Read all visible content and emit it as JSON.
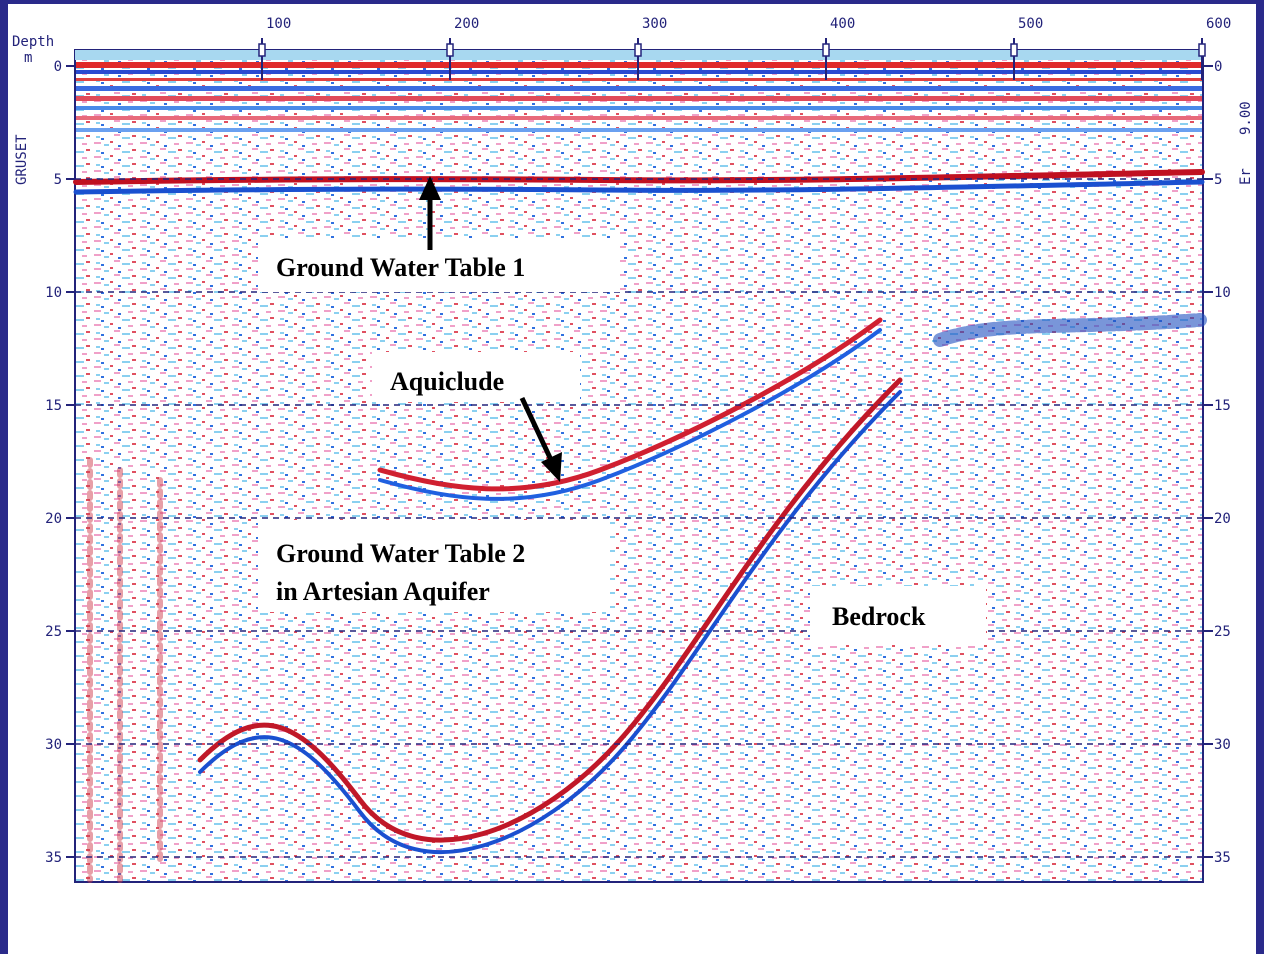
{
  "top_axis": {
    "ticks": [
      100,
      200,
      300,
      400,
      500,
      600
    ]
  },
  "left_axis": {
    "title": "Depth",
    "unit": "m",
    "label": "GRUSET",
    "ticks": [
      0,
      5,
      10,
      15,
      20,
      25,
      30,
      35
    ]
  },
  "right_axis": {
    "label": "Er",
    "value": "9.00",
    "ticks": [
      0,
      5,
      10,
      15,
      20,
      25,
      30,
      35
    ]
  },
  "annotations": [
    {
      "lines": [
        "Ground Water Table 1"
      ]
    },
    {
      "lines": [
        "Aquiclude"
      ]
    },
    {
      "lines": [
        "Ground Water Table 2",
        "in Artesian Aquifer"
      ]
    },
    {
      "lines": [
        "Bedrock"
      ]
    }
  ]
}
